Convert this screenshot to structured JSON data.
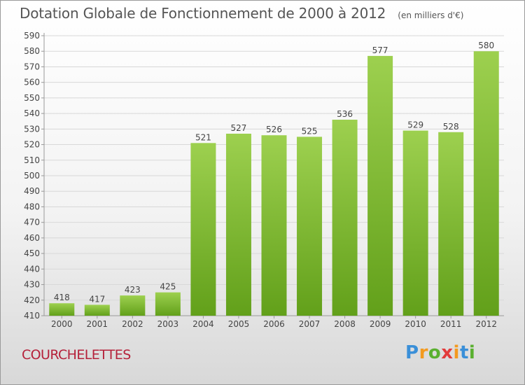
{
  "header": {
    "title": "Dotation Globale de Fonctionnement de 2000 à 2012",
    "unit": "(en milliers d'€)"
  },
  "footer": {
    "commune": "COURCHELETTES",
    "brand": {
      "letters": [
        "P",
        "r",
        "o",
        "x",
        "i",
        "t",
        "i"
      ],
      "colors": [
        "#3a8fd8",
        "#f39a1f",
        "#5ab030",
        "#e23b3b",
        "#f39a1f",
        "#3a8fd8",
        "#5ab030"
      ]
    }
  },
  "colors": {
    "bar_light": "#9dd04f",
    "bar_dark": "#62a01a",
    "grid": "#d8d8d8",
    "axis": "#999999",
    "text": "#444444"
  },
  "chart_data": {
    "type": "bar",
    "title": "Dotation Globale de Fonctionnement de 2000 à 2012",
    "unit": "(en milliers d'€)",
    "categories": [
      "2000",
      "2001",
      "2002",
      "2003",
      "2004",
      "2005",
      "2006",
      "2007",
      "2008",
      "2009",
      "2010",
      "2011",
      "2012"
    ],
    "values": [
      418,
      417,
      423,
      425,
      521,
      527,
      526,
      525,
      536,
      577,
      529,
      528,
      580
    ],
    "ylim": [
      410,
      590
    ],
    "ytick_step": 10,
    "grid": true,
    "legend": "none"
  }
}
